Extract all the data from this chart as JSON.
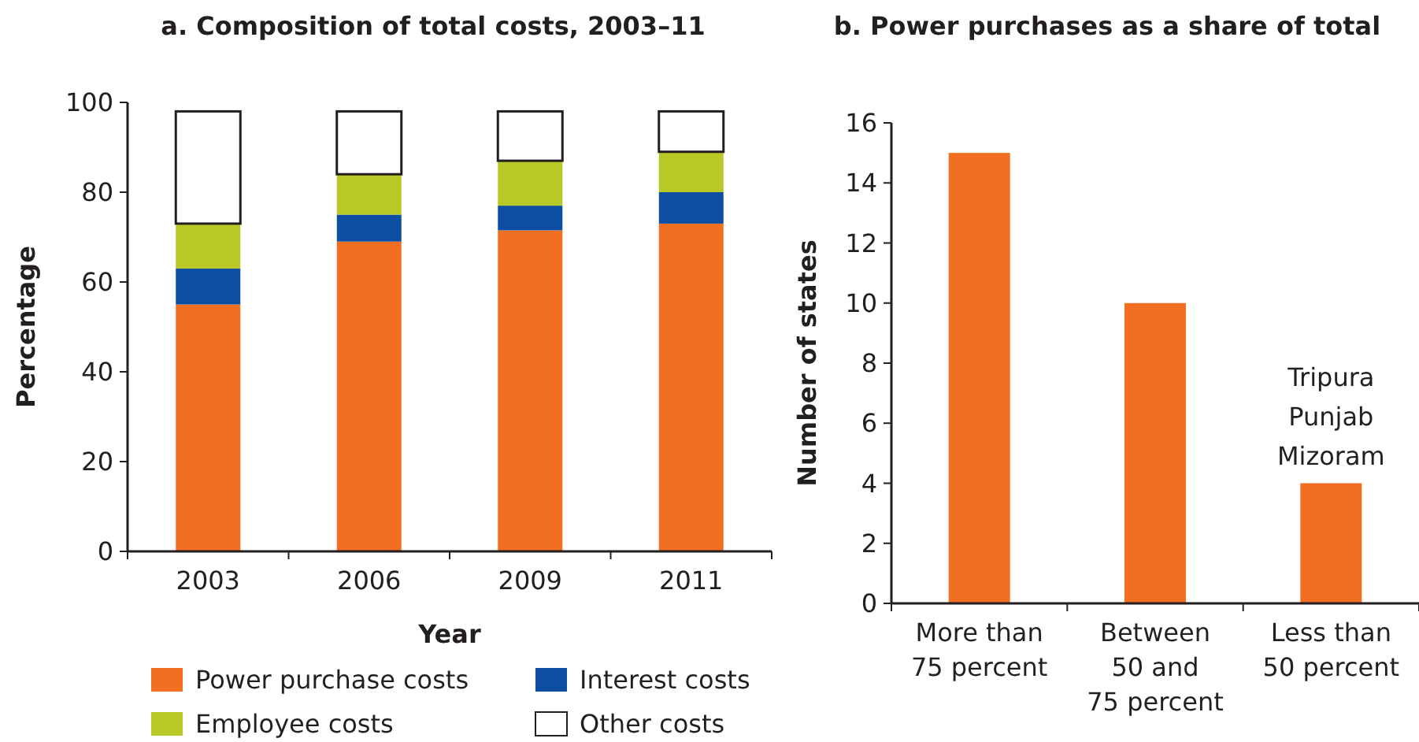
{
  "chart_data": [
    {
      "type": "bar",
      "title": "a. Composition of total costs, 2003–11",
      "xlabel": "Year",
      "ylabel": "Percentage",
      "categories": [
        "2003",
        "2006",
        "2009",
        "2011"
      ],
      "stacked": true,
      "ylim": [
        0,
        100
      ],
      "yticks": [
        0,
        20,
        40,
        60,
        80,
        100
      ],
      "legend": "bottom",
      "series": [
        {
          "name": "Power purchase costs",
          "color": "#f26f21",
          "values": [
            55,
            69,
            71.5,
            73
          ]
        },
        {
          "name": "Interest costs",
          "color": "#0d4ea2",
          "values": [
            8,
            6,
            5.5,
            7
          ]
        },
        {
          "name": "Employee costs",
          "color": "#b8c827",
          "values": [
            10,
            9,
            10,
            9
          ]
        },
        {
          "name": "Other costs",
          "color": "#ffffff",
          "values": [
            25,
            14,
            11,
            9
          ]
        }
      ]
    },
    {
      "type": "bar",
      "title": "b. Power purchases as a share of total",
      "ylabel": "Number of states",
      "categories": [
        "More than\n75 percent",
        "Between\n50 and\n75 percent",
        "Less than\n50 percent"
      ],
      "ylim": [
        0,
        16
      ],
      "yticks": [
        0,
        2,
        4,
        6,
        8,
        10,
        12,
        14,
        16
      ],
      "color": "#f26f21",
      "values": [
        15,
        10,
        4
      ],
      "annotations": [
        "Tripura\nPunjab\nMizoram"
      ]
    }
  ]
}
